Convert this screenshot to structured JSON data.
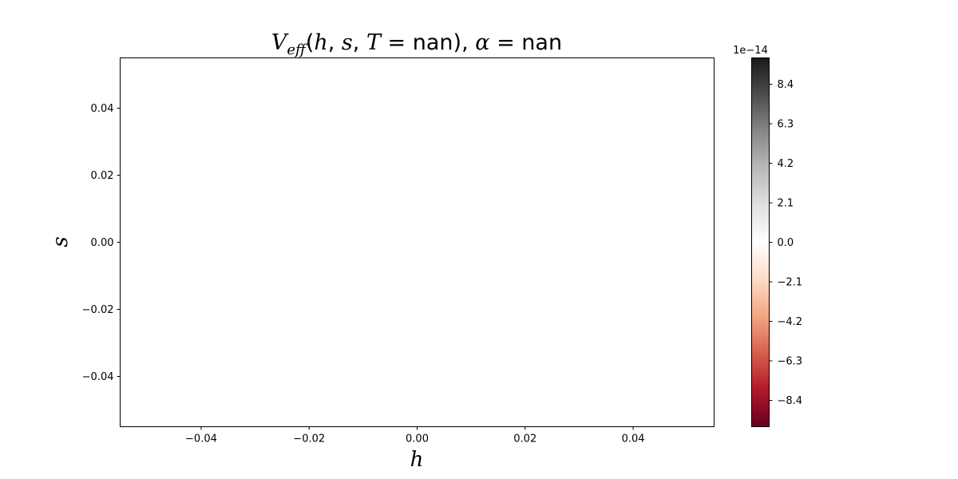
{
  "chart_data": {
    "type": "heatmap",
    "title": {
      "v": "V",
      "sub": "eff",
      "args_open": "(",
      "h": "h",
      "comma1": ", ",
      "s": "s",
      "comma2": ", ",
      "t": "T",
      "eq1": " = ",
      "nan1": "nan",
      "close": "),",
      "alpha": " α",
      "eq2": " = ",
      "nan2": "nan"
    },
    "xlabel": "h",
    "ylabel": "s",
    "xlim": [
      -0.055,
      0.055
    ],
    "ylim": [
      -0.055,
      0.055
    ],
    "xticks": [
      -0.04,
      -0.02,
      0.0,
      0.02,
      0.04
    ],
    "xtick_labels": [
      "−0.04",
      "−0.02",
      "0.00",
      "0.02",
      "0.04"
    ],
    "yticks": [
      -0.04,
      -0.02,
      0.0,
      0.02,
      0.04
    ],
    "ytick_labels": [
      "−0.04",
      "−0.02",
      "0.00",
      "0.02",
      "0.04"
    ],
    "values": [],
    "grid": false,
    "colorbar": {
      "colormap": "RdGy",
      "range": [
        -9.8,
        9.8
      ],
      "ticks": [
        -8.4,
        -6.3,
        -4.2,
        -2.1,
        0.0,
        2.1,
        4.2,
        6.3,
        8.4
      ],
      "tick_labels": [
        "−8.4",
        "−6.3",
        "−4.2",
        "−2.1",
        "0.0",
        "2.1",
        "4.2",
        "6.3",
        "8.4"
      ],
      "offset_label": "1e−14",
      "colors": [
        "#67001f",
        "#b2182b",
        "#d6604d",
        "#f4a582",
        "#fddbc7",
        "#ffffff",
        "#e0e0e0",
        "#bababa",
        "#878787",
        "#4d4d4d",
        "#1a1a1a"
      ]
    }
  }
}
